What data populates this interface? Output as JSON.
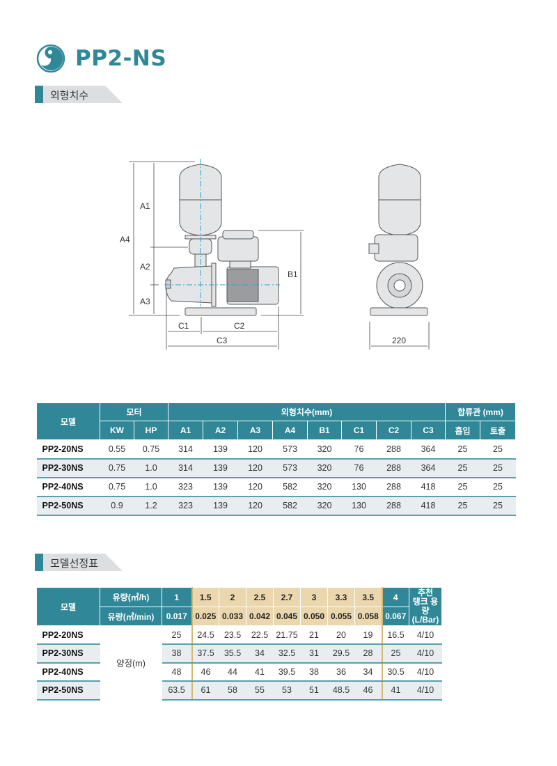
{
  "header": {
    "title": "PP2-NS",
    "logo_icon": "swirl-circle-icon",
    "accent_color": "#2f8797"
  },
  "section_dimensions": {
    "label": "외형치수"
  },
  "drawing": {
    "labels": {
      "a1": "A1",
      "a2": "A2",
      "a3": "A3",
      "a4": "A4",
      "b1": "B1",
      "c1": "C1",
      "c2": "C2",
      "c3": "C3",
      "width": "220"
    }
  },
  "dim_table": {
    "headers": {
      "model": "모델",
      "motor": "모터",
      "dims": "외형치수(mm)",
      "pipe": "합류관 (mm)"
    },
    "subheaders": [
      "KW",
      "HP",
      "A1",
      "A2",
      "A3",
      "A4",
      "B1",
      "C1",
      "C2",
      "C3",
      "흡입",
      "토출"
    ],
    "rows": [
      {
        "model": "PP2-20NS",
        "values": [
          "0.55",
          "0.75",
          "314",
          "139",
          "120",
          "573",
          "320",
          "76",
          "288",
          "364",
          "25",
          "25"
        ]
      },
      {
        "model": "PP2-30NS",
        "values": [
          "0.75",
          "1.0",
          "314",
          "139",
          "120",
          "573",
          "320",
          "76",
          "288",
          "364",
          "25",
          "25"
        ]
      },
      {
        "model": "PP2-40NS",
        "values": [
          "0.75",
          "1.0",
          "323",
          "139",
          "120",
          "582",
          "320",
          "130",
          "288",
          "418",
          "25",
          "25"
        ]
      },
      {
        "model": "PP2-50NS",
        "values": [
          "0.9",
          "1.2",
          "323",
          "139",
          "120",
          "582",
          "320",
          "130",
          "288",
          "418",
          "25",
          "25"
        ]
      }
    ]
  },
  "section_selection": {
    "label": "모델선정표"
  },
  "sel_table": {
    "headers": {
      "model": "모델",
      "flow_h": "유량(㎥/h)",
      "flow_min": "유량(㎥/min)",
      "tank": "추천\n탱크 용량\n(L/Bar)",
      "head": "양정(m)"
    },
    "flow_h": [
      "1",
      "1.5",
      "2",
      "2.5",
      "2.7",
      "3",
      "3.3",
      "3.5",
      "4"
    ],
    "flow_min": [
      "0.017",
      "0.025",
      "0.033",
      "0.042",
      "0.045",
      "0.050",
      "0.055",
      "0.058",
      "0.067"
    ],
    "tan_highlight_color": "#ead7ae",
    "rows": [
      {
        "model": "PP2-20NS",
        "values": [
          "25",
          "24.5",
          "23.5",
          "22.5",
          "21.75",
          "21",
          "20",
          "19",
          "16.5"
        ],
        "tank": "4/10"
      },
      {
        "model": "PP2-30NS",
        "values": [
          "38",
          "37.5",
          "35.5",
          "34",
          "32.5",
          "31",
          "29.5",
          "28",
          "25"
        ],
        "tank": "4/10"
      },
      {
        "model": "PP2-40NS",
        "values": [
          "48",
          "46",
          "44",
          "41",
          "39.5",
          "38",
          "36",
          "34",
          "30.5"
        ],
        "tank": "4/10"
      },
      {
        "model": "PP2-50NS",
        "values": [
          "63.5",
          "61",
          "58",
          "55",
          "53",
          "51",
          "48.5",
          "46",
          "41"
        ],
        "tank": "4/10"
      }
    ]
  }
}
